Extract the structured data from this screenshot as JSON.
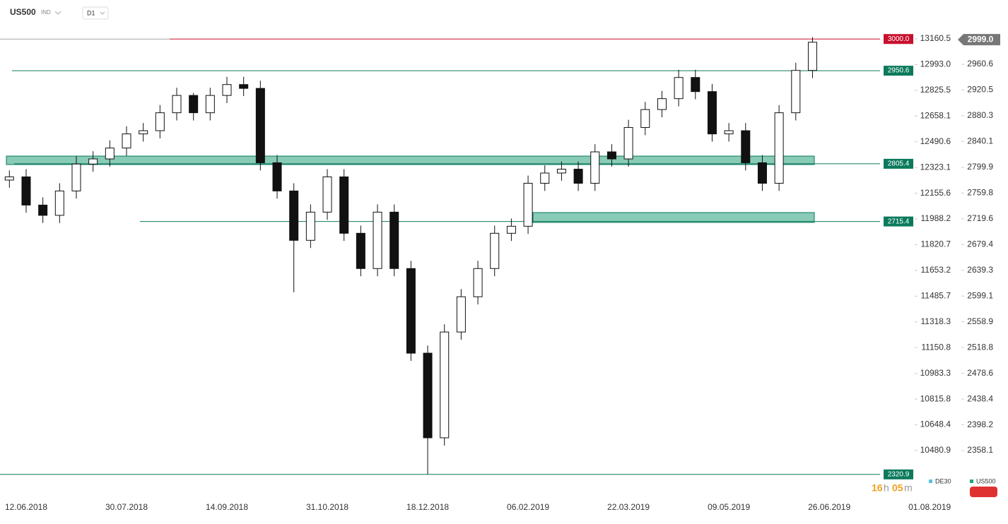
{
  "header": {
    "symbol": "US500",
    "tag": "IND",
    "timeframe": "D1"
  },
  "countdown": {
    "hours": "16",
    "h": "h",
    "minutes": "05",
    "m": "m"
  },
  "chart_data": {
    "type": "candlestick",
    "categories": [
      null,
      "12.06.2018",
      null,
      null,
      null,
      null,
      null,
      "30.07.2018",
      null,
      null,
      null,
      null,
      null,
      "14.09.2018",
      null,
      null,
      null,
      null,
      null,
      "31.10.2018",
      null,
      null,
      null,
      null,
      null,
      "18.12.2018",
      null,
      null,
      null,
      null,
      null,
      "06.02.2019",
      null,
      null,
      null,
      null,
      null,
      "22.03.2019",
      null,
      null,
      null,
      null,
      null,
      "09.05.2019",
      null,
      null,
      null,
      null,
      null,
      "26.06.2019",
      null,
      null,
      null,
      null,
      null,
      "01.08.2019"
    ],
    "series": [
      {
        "name": "US500",
        "up_color": "#ffffff",
        "down_color": "#111111",
        "open": [
          2780,
          2785,
          2741,
          2725,
          2763,
          2805,
          2813,
          2830,
          2852,
          2857,
          2885,
          2912,
          2885,
          2912,
          2929,
          2923,
          2807,
          2763,
          2686,
          2730,
          2785,
          2697,
          2642,
          2730,
          2642,
          2510,
          2378,
          2543,
          2598,
          2642,
          2697,
          2708,
          2775,
          2791,
          2797,
          2775,
          2824,
          2813,
          2862,
          2890,
          2907,
          2940,
          2918,
          2852,
          2857,
          2807,
          2775,
          2885,
          2951,
          null,
          null,
          null,
          null,
          null,
          null,
          null
        ],
        "high": [
          2795,
          2797,
          2753,
          2775,
          2817,
          2825,
          2842,
          2864,
          2869,
          2897,
          2924,
          2916,
          2924,
          2941,
          2941,
          2935,
          2819,
          2775,
          2742,
          2797,
          2797,
          2709,
          2742,
          2742,
          2654,
          2522,
          2555,
          2610,
          2654,
          2709,
          2720,
          2787,
          2803,
          2809,
          2809,
          2836,
          2836,
          2874,
          2902,
          2919,
          2952,
          2952,
          2930,
          2869,
          2869,
          2819,
          2897,
          2963,
          3003,
          null,
          null,
          null,
          null,
          null,
          null,
          null
        ],
        "low": [
          2768,
          2729,
          2713,
          2713,
          2751,
          2793,
          2801,
          2818,
          2840,
          2845,
          2873,
          2873,
          2873,
          2900,
          2911,
          2795,
          2751,
          2605,
          2674,
          2718,
          2685,
          2630,
          2630,
          2630,
          2498,
          2321,
          2366,
          2531,
          2586,
          2630,
          2685,
          2696,
          2763,
          2779,
          2763,
          2763,
          2801,
          2801,
          2850,
          2878,
          2895,
          2906,
          2840,
          2840,
          2795,
          2763,
          2763,
          2873,
          2939,
          null,
          null,
          null,
          null,
          null,
          null,
          null
        ],
        "close": [
          2785,
          2741,
          2725,
          2763,
          2805,
          2813,
          2830,
          2852,
          2857,
          2885,
          2912,
          2885,
          2912,
          2929,
          2923,
          2807,
          2763,
          2686,
          2730,
          2785,
          2697,
          2642,
          2730,
          2642,
          2510,
          2378,
          2543,
          2598,
          2642,
          2697,
          2708,
          2775,
          2791,
          2797,
          2775,
          2824,
          2813,
          2862,
          2890,
          2907,
          2940,
          2918,
          2852,
          2857,
          2807,
          2775,
          2885,
          2951,
          2995,
          null,
          null,
          null,
          null,
          null,
          null,
          null
        ]
      }
    ],
    "ylim": [
      2289.8,
      3016.8
    ],
    "yticks": [
      2960.6,
      2920.5,
      2880.3,
      2840.1,
      2799.9,
      2759.8,
      2719.6,
      2679.4,
      2639.3,
      2599.1,
      2558.9,
      2518.8,
      2478.6,
      2438.4,
      2398.2,
      2358.1
    ],
    "y2lim": [
      10195.9,
      13229.4
    ],
    "y2ticks": [
      13160.5,
      {
        "value": 12993,
        "label": "12993.0"
      },
      12825.5,
      12658.1,
      12490.6,
      12323.1,
      12155.6,
      11988.2,
      11820.7,
      11653.2,
      11485.7,
      11318.3,
      11150.8,
      10983.3,
      10815.8,
      10648.4,
      10480.9
    ],
    "levels": [
      {
        "value": 3000,
        "label": "3000.0",
        "color": "#c8102e"
      },
      {
        "value": 2950.6,
        "color": "#0b7a5c"
      },
      {
        "value": 2805.4,
        "color": "#0b7a5c"
      },
      {
        "value": 2715.4,
        "color": "#0b7a5c"
      },
      {
        "value": 2320.9,
        "color": "#0b7a5c"
      }
    ],
    "zones": [
      {
        "low": 2804.2,
        "high": 2817.4
      },
      {
        "low": 2713.9,
        "high": 2729.3
      }
    ],
    "last_price": {
      "value": 2999,
      "label": "2999.0"
    },
    "legend": [
      {
        "name": "DE30",
        "color": "#5bc0de"
      },
      {
        "name": "US500",
        "color": "#26a17b"
      }
    ]
  }
}
